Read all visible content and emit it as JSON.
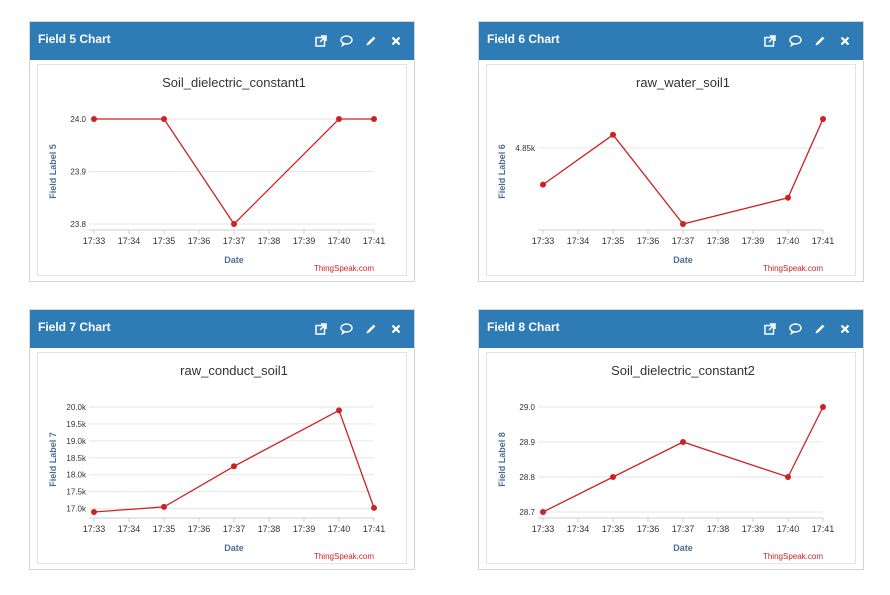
{
  "colors": {
    "header": "#2e7bb5",
    "line": "#cc2222",
    "grid": "#e6e6e6",
    "axis_label": "#4d6e94"
  },
  "icons": [
    "external-link-icon",
    "comment-icon",
    "pencil-icon",
    "close-icon"
  ],
  "panels": [
    {
      "title": "Field 5 Chart"
    },
    {
      "title": "Field 6 Chart"
    },
    {
      "title": "Field 7 Chart"
    },
    {
      "title": "Field 8 Chart"
    }
  ],
  "chart_data": [
    {
      "type": "line",
      "title": "Soil_dielectric_constant1",
      "xlabel": "Date",
      "ylabel": "Field Label 5",
      "credits": "ThingSpeak.com",
      "x_ticks": [
        "17:33",
        "17:34",
        "17:35",
        "17:36",
        "17:37",
        "17:38",
        "17:39",
        "17:40",
        "17:41"
      ],
      "x": [
        "17:33",
        "17:35",
        "17:37",
        "17:40",
        "17:41"
      ],
      "values": [
        24.0,
        24.0,
        23.8,
        24.0,
        24.0
      ],
      "y_ticks": [
        {
          "v": 23.8,
          "label": "23.8"
        },
        {
          "v": 23.9,
          "label": "23.9"
        },
        {
          "v": 24.0,
          "label": "24.0"
        }
      ],
      "ylim": [
        23.8,
        24.0
      ]
    },
    {
      "type": "line",
      "title": "raw_water_soil1",
      "xlabel": "Date",
      "ylabel": "Field Label 6",
      "credits": "ThingSpeak.com",
      "x_ticks": [
        "17:33",
        "17:34",
        "17:35",
        "17:36",
        "17:37",
        "17:38",
        "17:39",
        "17:40",
        "17:41"
      ],
      "x": [
        "17:33",
        "17:35",
        "17:37",
        "17:40",
        "17:41"
      ],
      "values": [
        4822,
        4860,
        4792,
        4812,
        4872
      ],
      "y_ticks": [
        {
          "v": 4850,
          "label": "4.85k"
        }
      ],
      "ylim": [
        4792,
        4872
      ]
    },
    {
      "type": "line",
      "title": "raw_conduct_soil1",
      "xlabel": "Date",
      "ylabel": "Field Label 7",
      "credits": "ThingSpeak.com",
      "x_ticks": [
        "17:33",
        "17:34",
        "17:35",
        "17:36",
        "17:37",
        "17:38",
        "17:39",
        "17:40",
        "17:41"
      ],
      "x": [
        "17:33",
        "17:35",
        "17:37",
        "17:40",
        "17:41"
      ],
      "values": [
        16900,
        17050,
        18250,
        19900,
        17020
      ],
      "y_ticks": [
        {
          "v": 17000,
          "label": "17.0k"
        },
        {
          "v": 17500,
          "label": "17.5k"
        },
        {
          "v": 18000,
          "label": "18.0k"
        },
        {
          "v": 18500,
          "label": "18.5k"
        },
        {
          "v": 19000,
          "label": "19.0k"
        },
        {
          "v": 19500,
          "label": "19.5k"
        },
        {
          "v": 20000,
          "label": "20.0k"
        }
      ],
      "ylim": [
        16900,
        20000
      ]
    },
    {
      "type": "line",
      "title": "Soil_dielectric_constant2",
      "xlabel": "Date",
      "ylabel": "Field Label 8",
      "credits": "ThingSpeak.com",
      "x_ticks": [
        "17:33",
        "17:34",
        "17:35",
        "17:36",
        "17:37",
        "17:38",
        "17:39",
        "17:40",
        "17:41"
      ],
      "x": [
        "17:33",
        "17:35",
        "17:37",
        "17:40",
        "17:41"
      ],
      "values": [
        28.7,
        28.8,
        28.9,
        28.8,
        29.0
      ],
      "y_ticks": [
        {
          "v": 28.7,
          "label": "28.7"
        },
        {
          "v": 28.8,
          "label": "28.8"
        },
        {
          "v": 28.9,
          "label": "28.9"
        },
        {
          "v": 29.0,
          "label": "29.0"
        }
      ],
      "ylim": [
        28.7,
        29.0
      ]
    }
  ]
}
